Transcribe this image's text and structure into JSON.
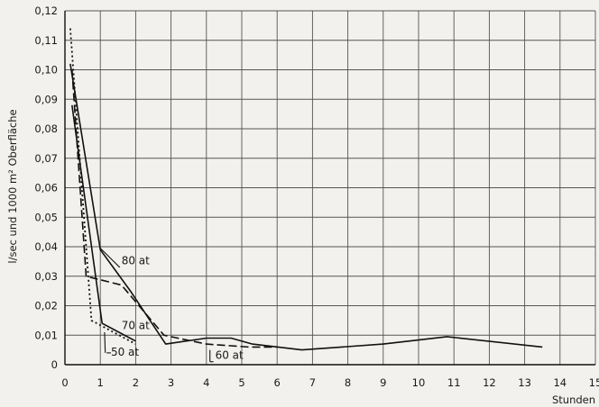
{
  "chart_data": {
    "type": "line",
    "title": "",
    "xlabel": "Stunden",
    "ylabel": "l/sec und 1000 m² Oberfläche",
    "xlim": [
      0,
      15
    ],
    "ylim": [
      0,
      0.12
    ],
    "grid": true,
    "x_ticks": [
      "0",
      "1",
      "2",
      "3",
      "4",
      "5",
      "6",
      "7",
      "8",
      "9",
      "10",
      "11",
      "12",
      "13",
      "14",
      "15"
    ],
    "y_ticks": [
      "0",
      "0,01",
      "0,02",
      "0,03",
      "0,04",
      "0,05",
      "0,06",
      "0,07",
      "0,08",
      "0,09",
      "0,10",
      "0,11",
      "0,12"
    ],
    "series": [
      {
        "name": "80 at",
        "style": "solid",
        "x": [
          0.15,
          1.0,
          1.85,
          2.85,
          4.0,
          4.7,
          5.3,
          6.7,
          9.0,
          10.8,
          13.5
        ],
        "y": [
          0.102,
          0.039,
          0.025,
          0.007,
          0.009,
          0.009,
          0.007,
          0.005,
          0.007,
          0.0095,
          0.006
        ]
      },
      {
        "name": "70 at",
        "style": "solid",
        "x": [
          0.2,
          1.05,
          2.0
        ],
        "y": [
          0.088,
          0.014,
          0.008
        ]
      },
      {
        "name": "60 at",
        "style": "dashed",
        "x": [
          0.2,
          0.6,
          1.6,
          2.8,
          4.0,
          5.2,
          6.0
        ],
        "y": [
          0.1,
          0.03,
          0.027,
          0.01,
          0.007,
          0.006,
          0.006
        ]
      },
      {
        "name": "50 at",
        "style": "dotted",
        "x": [
          0.15,
          0.75,
          2.0
        ],
        "y": [
          0.114,
          0.015,
          0.007
        ]
      }
    ],
    "annotations": [
      {
        "text": "80 at",
        "x": 1.6,
        "y": 0.034
      },
      {
        "text": "70 at",
        "x": 1.6,
        "y": 0.012
      },
      {
        "text": "50 at",
        "x": 1.3,
        "y": 0.003
      },
      {
        "text": "60 at",
        "x": 4.25,
        "y": 0.002
      }
    ]
  }
}
